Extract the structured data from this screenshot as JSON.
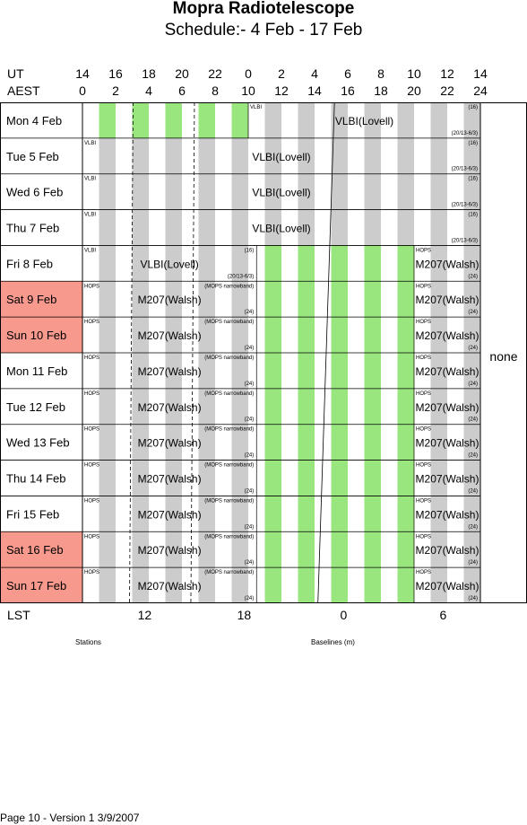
{
  "title": "Mopra Radiotelescope",
  "subtitle": "Schedule:- 4  Feb - 17 Feb",
  "ut_label": "UT",
  "aest_label": "AEST",
  "ut_ticks": [
    "14",
    "16",
    "18",
    "20",
    "22",
    "0",
    "2",
    "4",
    "6",
    "8",
    "10",
    "12",
    "14"
  ],
  "aest_ticks": [
    "0",
    "2",
    "4",
    "6",
    "8",
    "10",
    "12",
    "14",
    "16",
    "18",
    "20",
    "22",
    "24"
  ],
  "lst_label": "LST",
  "lst_ticks": [
    {
      "label": "12",
      "hour": 3.75
    },
    {
      "label": "18",
      "hour": 9.75
    },
    {
      "label": "0",
      "hour": 15.75
    },
    {
      "label": "6",
      "hour": 21.75
    }
  ],
  "stations_label": "Stations",
  "baselines_label": "Baselines (m)",
  "none_label": "none",
  "footer": "Page 10 - Version 1  3/9/2007",
  "colors": {
    "green": "#99e67f",
    "gray": "#cccccc",
    "weekend": "#f7998c",
    "line": "#000000"
  },
  "days": [
    {
      "label": "Mon   4 Feb",
      "weekend": false
    },
    {
      "label": "Tue   5 Feb",
      "weekend": false
    },
    {
      "label": "Wed   6 Feb",
      "weekend": false
    },
    {
      "label": "Thu   7 Feb",
      "weekend": false
    },
    {
      "label": "Fri    8 Feb",
      "weekend": false
    },
    {
      "label": "Sat    9 Feb",
      "weekend": true
    },
    {
      "label": "Sun  10 Feb",
      "weekend": true
    },
    {
      "label": "Mon  11 Feb",
      "weekend": false
    },
    {
      "label": "Tue   12 Feb",
      "weekend": false
    },
    {
      "label": "Wed  13 Feb",
      "weekend": false
    },
    {
      "label": "Thu   14 Feb",
      "weekend": false
    },
    {
      "label": "Fri    15 Feb",
      "weekend": false
    },
    {
      "label": "Sat    16 Feb",
      "weekend": true
    },
    {
      "label": "Sun   17 Feb",
      "weekend": true
    }
  ],
  "dashed_hours": [
    3.0,
    6.7
  ],
  "stripes": [
    {
      "start": 1.0,
      "end": 2.0
    },
    {
      "start": 3.0,
      "end": 4.0
    },
    {
      "start": 5.0,
      "end": 6.0
    },
    {
      "start": 7.0,
      "end": 8.0
    },
    {
      "start": 9.0,
      "end": 10.0
    },
    {
      "start": 11.0,
      "end": 12.0
    },
    {
      "start": 13.0,
      "end": 14.0
    },
    {
      "start": 15.0,
      "end": 16.0
    },
    {
      "start": 17.0,
      "end": 18.0
    },
    {
      "start": 19.0,
      "end": 20.0
    },
    {
      "start": 21.0,
      "end": 22.0
    },
    {
      "start": 23.0,
      "end": 24.0
    }
  ],
  "blocks": [
    {
      "day": 0,
      "start": 0.0,
      "end": 10.0,
      "stripe_color": "green",
      "tag_tl": "",
      "main": "",
      "tag_tr": "",
      "tag_br": ""
    },
    {
      "day": 0,
      "start": 10.0,
      "end": 24.0,
      "stripe_color": "gray",
      "tag_tl": "VLBI",
      "main": "VLBI(Lovell)",
      "tag_tr": "(16)",
      "tag_br": "(20/13-6/3)"
    },
    {
      "day": 1,
      "start": 0.0,
      "end": 24.0,
      "stripe_color": "gray",
      "tag_tl": "VLBI",
      "main": "VLBI(Lovell)",
      "tag_tr": "(16)",
      "tag_br": "(20/13-6/3)"
    },
    {
      "day": 2,
      "start": 0.0,
      "end": 24.0,
      "stripe_color": "gray",
      "tag_tl": "VLBI",
      "main": "VLBI(Lovell)",
      "tag_tr": "(16)",
      "tag_br": "(20/13-6/3)"
    },
    {
      "day": 3,
      "start": 0.0,
      "end": 24.0,
      "stripe_color": "gray",
      "tag_tl": "VLBI",
      "main": "VLBI(Lovell)",
      "tag_tr": "(16)",
      "tag_br": "(20/13-6/3)"
    },
    {
      "day": 4,
      "start": 0.0,
      "end": 10.5,
      "stripe_color": "gray",
      "tag_tl": "VLBI",
      "main": "VLBI(Lovell)",
      "tag_tr": "(16)",
      "tag_br": "(20/13-6/3)"
    },
    {
      "day": 4,
      "start": 10.5,
      "end": 20.0,
      "stripe_color": "green",
      "tag_tl": "",
      "main": "",
      "tag_tr": "",
      "tag_br": ""
    },
    {
      "day": 4,
      "start": 20.0,
      "end": 24.0,
      "stripe_color": "gray",
      "tag_tl": "HOPS",
      "main": "M207(Walsh)",
      "tag_tr": "",
      "tag_br": "(24)"
    }
  ],
  "m207_rows": [
    5,
    6,
    7,
    8,
    9,
    10,
    11,
    12,
    13
  ],
  "m207_left": {
    "tag_tl": "HOPS",
    "main": "M207(Walsh)",
    "tag_tr": "(MOPS narrowband)",
    "tag_br": "(24)"
  },
  "m207_right": {
    "tag_tl": "HOPS",
    "main": "M207(Walsh)",
    "tag_tr": "",
    "tag_br": "(24)"
  }
}
